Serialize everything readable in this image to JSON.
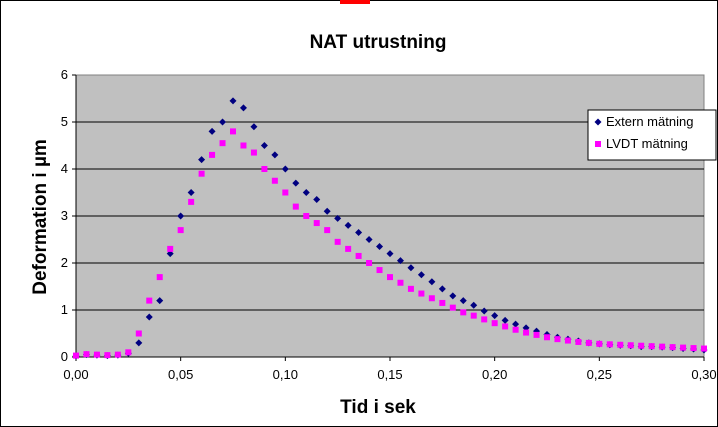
{
  "chart_data": {
    "type": "scatter",
    "title": "NAT utrustning",
    "xlabel": "Tid i sek",
    "ylabel": "Deformation i µm",
    "xlim": [
      0,
      0.3
    ],
    "ylim": [
      0,
      6
    ],
    "x_ticks": [
      "0,00",
      "0,05",
      "0,10",
      "0,15",
      "0,20",
      "0,25",
      "0,30"
    ],
    "y_ticks": [
      "0",
      "1",
      "2",
      "3",
      "4",
      "5",
      "6"
    ],
    "grid": "horizontal",
    "plot_background": "#c0c0c0",
    "legend_position": "right",
    "series": [
      {
        "name": "Extern mätning",
        "color": "#000080",
        "marker": "diamond",
        "points": [
          [
            0.0,
            0.02
          ],
          [
            0.005,
            0.05
          ],
          [
            0.01,
            0.04
          ],
          [
            0.015,
            0.03
          ],
          [
            0.02,
            0.04
          ],
          [
            0.025,
            0.08
          ],
          [
            0.03,
            0.3
          ],
          [
            0.035,
            0.85
          ],
          [
            0.04,
            1.2
          ],
          [
            0.045,
            2.2
          ],
          [
            0.05,
            3.0
          ],
          [
            0.055,
            3.5
          ],
          [
            0.06,
            4.2
          ],
          [
            0.065,
            4.8
          ],
          [
            0.07,
            5.0
          ],
          [
            0.075,
            5.45
          ],
          [
            0.08,
            5.3
          ],
          [
            0.085,
            4.9
          ],
          [
            0.09,
            4.5
          ],
          [
            0.095,
            4.3
          ],
          [
            0.1,
            4.0
          ],
          [
            0.105,
            3.7
          ],
          [
            0.11,
            3.5
          ],
          [
            0.115,
            3.35
          ],
          [
            0.12,
            3.1
          ],
          [
            0.125,
            2.95
          ],
          [
            0.13,
            2.8
          ],
          [
            0.135,
            2.65
          ],
          [
            0.14,
            2.5
          ],
          [
            0.145,
            2.35
          ],
          [
            0.15,
            2.2
          ],
          [
            0.155,
            2.05
          ],
          [
            0.16,
            1.9
          ],
          [
            0.165,
            1.75
          ],
          [
            0.17,
            1.6
          ],
          [
            0.175,
            1.45
          ],
          [
            0.18,
            1.3
          ],
          [
            0.185,
            1.2
          ],
          [
            0.19,
            1.1
          ],
          [
            0.195,
            0.98
          ],
          [
            0.2,
            0.88
          ],
          [
            0.205,
            0.78
          ],
          [
            0.21,
            0.7
          ],
          [
            0.215,
            0.62
          ],
          [
            0.22,
            0.55
          ],
          [
            0.225,
            0.48
          ],
          [
            0.23,
            0.42
          ],
          [
            0.235,
            0.38
          ],
          [
            0.24,
            0.34
          ],
          [
            0.245,
            0.3
          ],
          [
            0.25,
            0.28
          ],
          [
            0.255,
            0.26
          ],
          [
            0.26,
            0.25
          ],
          [
            0.265,
            0.24
          ],
          [
            0.27,
            0.22
          ],
          [
            0.275,
            0.22
          ],
          [
            0.28,
            0.21
          ],
          [
            0.285,
            0.2
          ],
          [
            0.29,
            0.18
          ],
          [
            0.295,
            0.17
          ],
          [
            0.3,
            0.15
          ]
        ]
      },
      {
        "name": "LVDT mätning",
        "color": "#ff00ff",
        "marker": "square",
        "points": [
          [
            0.0,
            0.03
          ],
          [
            0.005,
            0.06
          ],
          [
            0.01,
            0.05
          ],
          [
            0.015,
            0.04
          ],
          [
            0.02,
            0.05
          ],
          [
            0.025,
            0.1
          ],
          [
            0.03,
            0.5
          ],
          [
            0.035,
            1.2
          ],
          [
            0.04,
            1.7
          ],
          [
            0.045,
            2.3
          ],
          [
            0.05,
            2.7
          ],
          [
            0.055,
            3.3
          ],
          [
            0.06,
            3.9
          ],
          [
            0.065,
            4.3
          ],
          [
            0.07,
            4.55
          ],
          [
            0.075,
            4.8
          ],
          [
            0.08,
            4.5
          ],
          [
            0.085,
            4.35
          ],
          [
            0.09,
            4.0
          ],
          [
            0.095,
            3.75
          ],
          [
            0.1,
            3.5
          ],
          [
            0.105,
            3.2
          ],
          [
            0.11,
            3.0
          ],
          [
            0.115,
            2.85
          ],
          [
            0.12,
            2.7
          ],
          [
            0.125,
            2.45
          ],
          [
            0.13,
            2.3
          ],
          [
            0.135,
            2.15
          ],
          [
            0.14,
            2.0
          ],
          [
            0.145,
            1.85
          ],
          [
            0.15,
            1.7
          ],
          [
            0.155,
            1.58
          ],
          [
            0.16,
            1.45
          ],
          [
            0.165,
            1.35
          ],
          [
            0.17,
            1.25
          ],
          [
            0.175,
            1.15
          ],
          [
            0.18,
            1.05
          ],
          [
            0.185,
            0.95
          ],
          [
            0.19,
            0.88
          ],
          [
            0.195,
            0.8
          ],
          [
            0.2,
            0.72
          ],
          [
            0.205,
            0.65
          ],
          [
            0.21,
            0.58
          ],
          [
            0.215,
            0.52
          ],
          [
            0.22,
            0.47
          ],
          [
            0.225,
            0.42
          ],
          [
            0.23,
            0.38
          ],
          [
            0.235,
            0.35
          ],
          [
            0.24,
            0.32
          ],
          [
            0.245,
            0.3
          ],
          [
            0.25,
            0.28
          ],
          [
            0.255,
            0.27
          ],
          [
            0.26,
            0.26
          ],
          [
            0.265,
            0.25
          ],
          [
            0.27,
            0.24
          ],
          [
            0.275,
            0.23
          ],
          [
            0.28,
            0.22
          ],
          [
            0.285,
            0.21
          ],
          [
            0.29,
            0.2
          ],
          [
            0.295,
            0.19
          ],
          [
            0.3,
            0.18
          ]
        ]
      }
    ]
  }
}
